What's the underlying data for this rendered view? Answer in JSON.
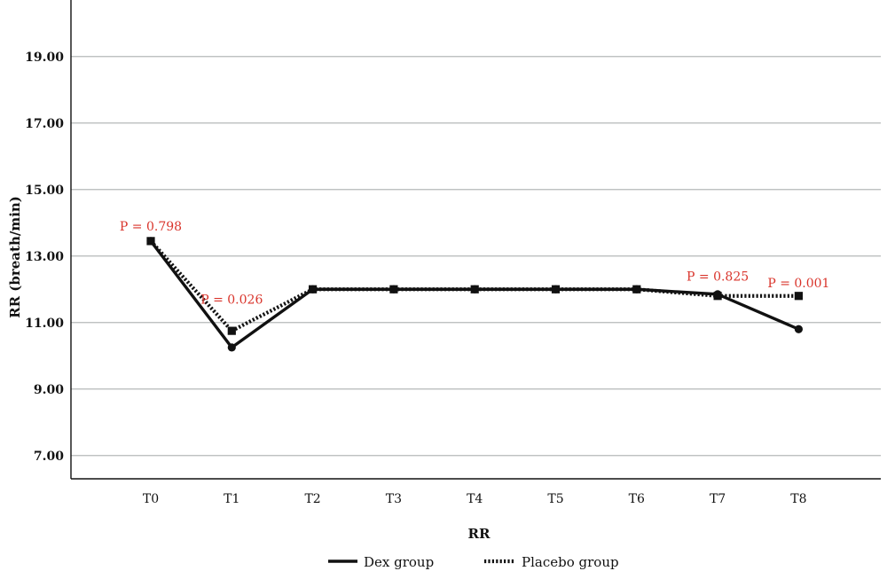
{
  "chart_data": {
    "type": "line",
    "xlabel": "RR",
    "ylabel": "RR (breath/min)",
    "ylim": [
      6.3,
      20.7
    ],
    "yticks": [
      "7.00",
      "9.00",
      "11.00",
      "13.00",
      "15.00",
      "17.00",
      "19.00"
    ],
    "grid": true,
    "legend_position": "bottom",
    "categories": [
      "T0",
      "T1",
      "T2",
      "T3",
      "T4",
      "T5",
      "T6",
      "T7",
      "T8"
    ],
    "series": [
      {
        "name": "Dex group",
        "style": "solid",
        "marker": "circle",
        "values": [
          13.45,
          10.25,
          12.0,
          12.0,
          12.0,
          12.0,
          12.0,
          11.85,
          10.8
        ]
      },
      {
        "name": "Placebo group",
        "style": "dotted",
        "marker": "square",
        "values": [
          13.45,
          10.75,
          12.0,
          12.0,
          12.0,
          12.0,
          12.0,
          11.8,
          11.8
        ]
      }
    ],
    "annotations": [
      {
        "text": "P = 0.798",
        "category": "T0",
        "y": 13.9
      },
      {
        "text": "P = 0.026",
        "category": "T1",
        "y": 11.7
      },
      {
        "text": "P = 0.825",
        "category": "T7",
        "y": 12.4
      },
      {
        "text": "P = 0.001",
        "category": "T8",
        "y": 12.2
      }
    ],
    "colors": {
      "line": "#111111",
      "grid": "#b5b8b8",
      "annotation": "#d9342b"
    }
  }
}
